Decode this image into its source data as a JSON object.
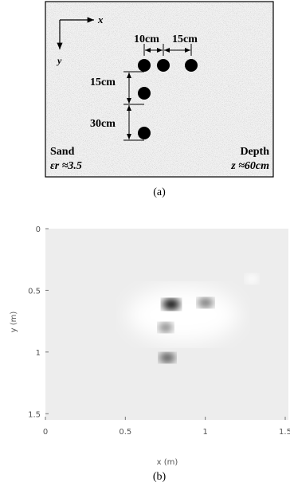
{
  "panel_a": {
    "axis_x": "x",
    "axis_y": "y",
    "spacings": [
      "10cm",
      "15cm",
      "15cm",
      "30cm"
    ],
    "medium": "Sand",
    "permittivity": "εr ≈3.5",
    "depth_label": "Depth",
    "depth_value": "z ≈60cm",
    "caption": "(a)"
  },
  "panel_b": {
    "xlabel": "x (m)",
    "ylabel": "y (m)",
    "xlim": [
      0,
      1.52
    ],
    "ylim": [
      0,
      1.55
    ],
    "xticks": [
      0,
      0.5,
      1,
      1.5
    ],
    "yticks": [
      0,
      0.5,
      1,
      1.5
    ],
    "caption": "(b)"
  }
}
